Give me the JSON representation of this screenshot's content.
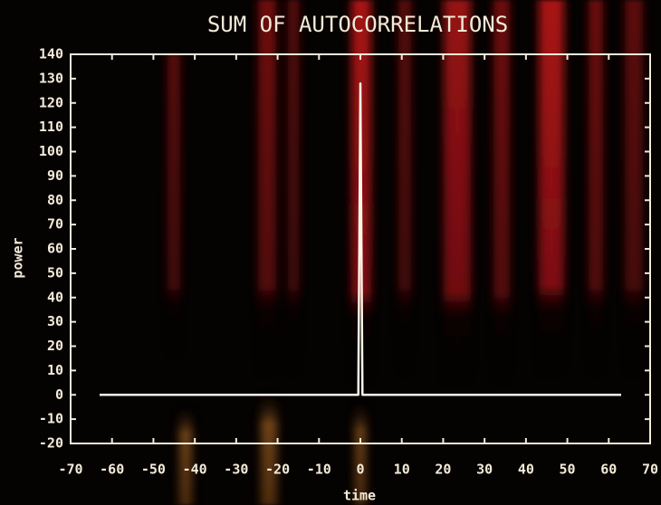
{
  "chart_data": {
    "type": "line",
    "title": "SUM OF AUTOCORRELATIONS",
    "x_label": "time",
    "y_label": "power",
    "x": [
      -63,
      -0.5,
      0,
      0.5,
      63
    ],
    "values": [
      0,
      0,
      128,
      0,
      0
    ],
    "color": "#fff4e6",
    "xlim": [
      -70,
      70
    ],
    "xticks": [
      -70,
      -60,
      -50,
      -40,
      -30,
      -20,
      -10,
      0,
      10,
      20,
      30,
      40,
      50,
      60,
      70
    ],
    "ylim": [
      -20,
      140
    ],
    "yticks": [
      -20,
      -10,
      0,
      10,
      20,
      30,
      40,
      50,
      60,
      70,
      80,
      90,
      100,
      110,
      120,
      130,
      140
    ],
    "grid": false
  }
}
